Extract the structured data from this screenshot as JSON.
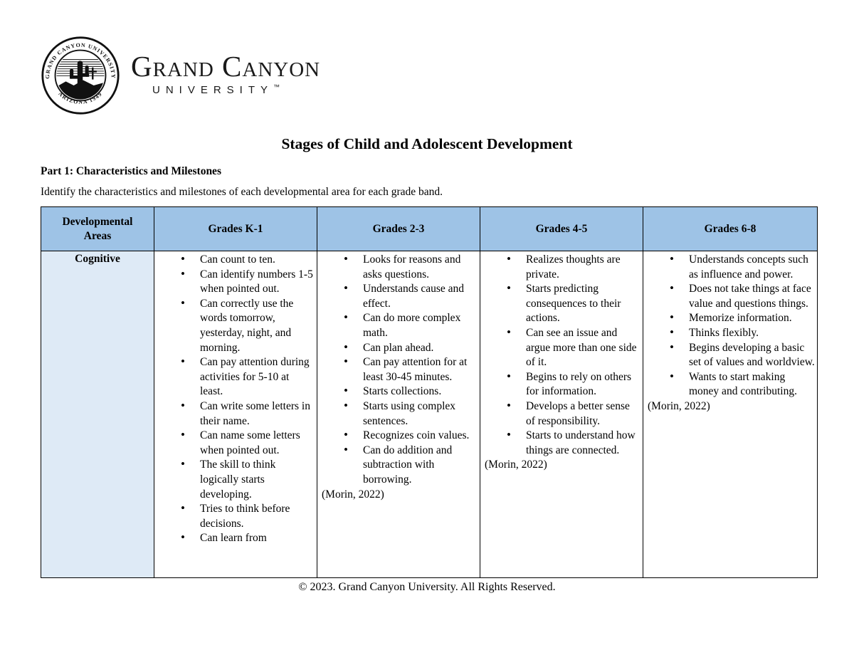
{
  "logo": {
    "seal": {
      "ring_text_top": "GRAND CANYON UNIVERSITY",
      "ring_text_bottom": "ARIZONA 1949"
    },
    "wordmark_primary": "Grand Canyon",
    "wordmark_secondary": "UNIVERSITY",
    "trademark_symbol": "™"
  },
  "document": {
    "title": "Stages of Child and Adolescent Development",
    "section_heading": "Part 1: Characteristics and Milestones",
    "instruction": "Identify the characteristics and milestones of each developmental area for each grade band.",
    "footer": "© 2023. Grand Canyon University. All Rights Reserved."
  },
  "table": {
    "headers": [
      "Developmental Areas",
      "Grades K-1",
      "Grades 2-3",
      "Grades 4-5",
      "Grades 6-8"
    ],
    "row_label": "Cognitive",
    "columns": [
      {
        "grade": "Grades K-1",
        "items": [
          "Can count to ten.",
          "Can identify numbers 1-5 when pointed out.",
          "Can correctly use the words tomorrow, yesterday, night, and morning.",
          "Can pay attention during activities for 5-10 at least.",
          "Can write some letters in their name.",
          "Can name some letters when pointed out.",
          "The skill to think logically starts developing.",
          "Tries to think before decisions.",
          "Can learn from"
        ],
        "citation": ""
      },
      {
        "grade": "Grades 2-3",
        "items": [
          "Looks for reasons and asks questions.",
          "Understands cause and effect.",
          "Can do more complex math.",
          "Can plan ahead.",
          "Can pay attention for at least 30-45 minutes.",
          "Starts collections.",
          "Starts using complex sentences.",
          "Recognizes coin values.",
          "Can do addition and subtraction with borrowing."
        ],
        "citation": "(Morin, 2022)"
      },
      {
        "grade": "Grades 4-5",
        "items": [
          "Realizes thoughts are private.",
          "Starts predicting consequences to their actions.",
          "Can see an issue and argue more than one side of it.",
          "Begins to rely on others for information.",
          "Develops a better sense of responsibility.",
          "Starts to understand how things are connected."
        ],
        "citation": "(Morin, 2022)"
      },
      {
        "grade": "Grades 6-8",
        "items": [
          "Understands concepts such as influence and power.",
          "Does not take things at face value and questions things.",
          "Memorize information.",
          "Thinks flexibly.",
          "Begins developing a basic set of values and worldview.",
          "Wants to start making money and contributing."
        ],
        "citation": "(Morin, 2022)"
      }
    ]
  },
  "colors": {
    "header_bg": "#9EC3E6",
    "label_bg": "#DEEAF6",
    "border": "#000000"
  }
}
